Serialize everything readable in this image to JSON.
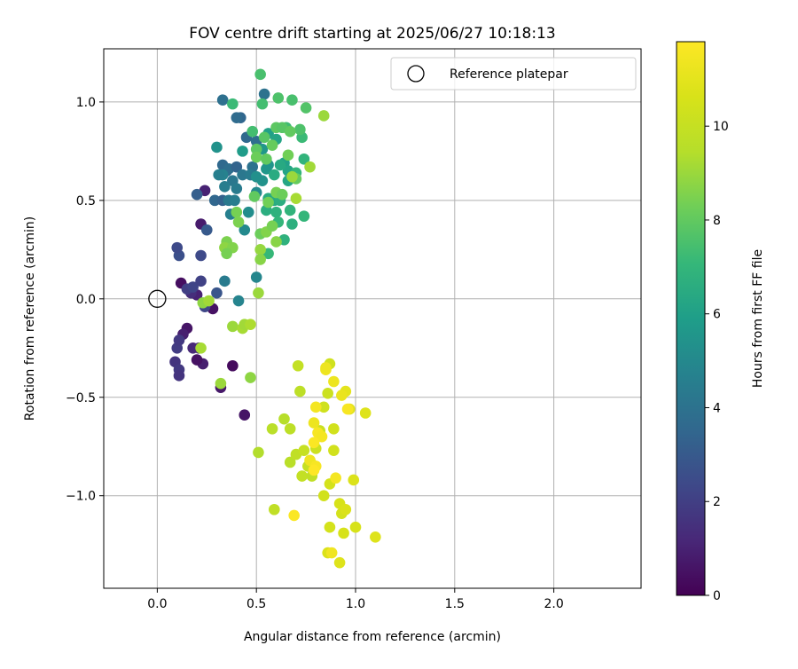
{
  "chart_data": {
    "type": "scatter",
    "title": "FOV centre drift starting at 2025/06/27 10:18:13",
    "xlabel": "Angular distance from reference (arcmin)",
    "ylabel": "Rotation from reference (arcmin)",
    "xlim": [
      -0.27,
      2.44
    ],
    "ylim": [
      -1.47,
      1.27
    ],
    "xticks": [
      0.0,
      0.5,
      1.0,
      1.5,
      2.0
    ],
    "xtick_labels": [
      "0.0",
      "0.5",
      "1.0",
      "1.5",
      "2.0"
    ],
    "yticks": [
      -1.0,
      -0.5,
      0.0,
      0.5,
      1.0
    ],
    "ytick_labels": [
      "−1.0",
      "−0.5",
      "0.0",
      "0.5",
      "1.0"
    ],
    "grid": true,
    "legend": {
      "placement": "top-right",
      "entries": [
        "Reference platepar"
      ]
    },
    "reference_point": {
      "x": 0.0,
      "y": 0.0
    },
    "colorbar": {
      "label": "Hours from first FF file",
      "min": 0,
      "max": 11.8,
      "ticks": [
        0,
        2,
        4,
        6,
        8,
        10
      ],
      "tick_labels": [
        "0",
        "2",
        "4",
        "6",
        "8",
        "10"
      ],
      "colormap": "viridis"
    },
    "points": [
      {
        "x": 0.12,
        "y": 0.08,
        "h": 0.4
      },
      {
        "x": 0.15,
        "y": -0.15,
        "h": 0.6
      },
      {
        "x": 0.13,
        "y": -0.18,
        "h": 0.9
      },
      {
        "x": 0.22,
        "y": 0.38,
        "h": 0.8
      },
      {
        "x": 0.24,
        "y": 0.55,
        "h": 1.0
      },
      {
        "x": 0.28,
        "y": -0.05,
        "h": 0.5
      },
      {
        "x": 0.32,
        "y": -0.45,
        "h": 0.7
      },
      {
        "x": 0.38,
        "y": -0.34,
        "h": 0.3
      },
      {
        "x": 0.44,
        "y": -0.59,
        "h": 0.6
      },
      {
        "x": 0.23,
        "y": -0.33,
        "h": 0.9
      },
      {
        "x": 0.2,
        "y": -0.31,
        "h": 0.5
      },
      {
        "x": 0.21,
        "y": -0.25,
        "h": 1.0
      },
      {
        "x": 0.18,
        "y": -0.25,
        "h": 1.2
      },
      {
        "x": 0.2,
        "y": 0.02,
        "h": 1.0
      },
      {
        "x": 0.17,
        "y": 0.03,
        "h": 1.4
      },
      {
        "x": 0.09,
        "y": -0.32,
        "h": 1.6
      },
      {
        "x": 0.11,
        "y": -0.36,
        "h": 1.8
      },
      {
        "x": 0.11,
        "y": -0.39,
        "h": 1.6
      },
      {
        "x": 0.1,
        "y": -0.25,
        "h": 1.9
      },
      {
        "x": 0.11,
        "y": -0.21,
        "h": 1.8
      },
      {
        "x": 0.15,
        "y": 0.05,
        "h": 2.0
      },
      {
        "x": 0.18,
        "y": 0.06,
        "h": 2.2
      },
      {
        "x": 0.22,
        "y": 0.09,
        "h": 2.1
      },
      {
        "x": 0.24,
        "y": -0.04,
        "h": 2.3
      },
      {
        "x": 0.22,
        "y": 0.22,
        "h": 2.4
      },
      {
        "x": 0.11,
        "y": 0.22,
        "h": 2.6
      },
      {
        "x": 0.1,
        "y": 0.26,
        "h": 2.4
      },
      {
        "x": 0.25,
        "y": 0.35,
        "h": 3.0
      },
      {
        "x": 0.3,
        "y": 0.03,
        "h": 2.8
      },
      {
        "x": 0.2,
        "y": 0.53,
        "h": 3.2
      },
      {
        "x": 0.29,
        "y": 0.5,
        "h": 3.5
      },
      {
        "x": 0.33,
        "y": 0.5,
        "h": 3.3
      },
      {
        "x": 0.35,
        "y": 0.65,
        "h": 3.4
      },
      {
        "x": 0.33,
        "y": 0.68,
        "h": 3.6
      },
      {
        "x": 0.36,
        "y": 0.66,
        "h": 3.8
      },
      {
        "x": 0.4,
        "y": 0.67,
        "h": 3.4
      },
      {
        "x": 0.42,
        "y": 0.92,
        "h": 3.5
      },
      {
        "x": 0.4,
        "y": 0.92,
        "h": 3.7
      },
      {
        "x": 0.33,
        "y": 1.01,
        "h": 3.9
      },
      {
        "x": 0.45,
        "y": 0.82,
        "h": 3.6
      },
      {
        "x": 0.5,
        "y": 0.8,
        "h": 3.8
      },
      {
        "x": 0.54,
        "y": 1.04,
        "h": 4.0
      },
      {
        "x": 0.43,
        "y": 0.63,
        "h": 4.2
      },
      {
        "x": 0.48,
        "y": 0.67,
        "h": 4.0
      },
      {
        "x": 0.47,
        "y": 0.63,
        "h": 4.4
      },
      {
        "x": 0.38,
        "y": 0.6,
        "h": 4.2
      },
      {
        "x": 0.36,
        "y": 0.5,
        "h": 4.3
      },
      {
        "x": 0.39,
        "y": 0.5,
        "h": 4.5
      },
      {
        "x": 0.37,
        "y": 0.43,
        "h": 4.6
      },
      {
        "x": 0.4,
        "y": 0.56,
        "h": 4.4
      },
      {
        "x": 0.34,
        "y": 0.57,
        "h": 4.5
      },
      {
        "x": 0.33,
        "y": 0.63,
        "h": 4.7
      },
      {
        "x": 0.31,
        "y": 0.63,
        "h": 4.6
      },
      {
        "x": 0.34,
        "y": 0.09,
        "h": 4.4
      },
      {
        "x": 0.41,
        "y": -0.01,
        "h": 4.8
      },
      {
        "x": 0.5,
        "y": 0.11,
        "h": 4.9
      },
      {
        "x": 0.44,
        "y": 0.35,
        "h": 5.0
      },
      {
        "x": 0.46,
        "y": 0.44,
        "h": 5.2
      },
      {
        "x": 0.5,
        "y": 0.54,
        "h": 5.0
      },
      {
        "x": 0.53,
        "y": 0.6,
        "h": 5.4
      },
      {
        "x": 0.5,
        "y": 0.62,
        "h": 5.3
      },
      {
        "x": 0.55,
        "y": 0.66,
        "h": 5.6
      },
      {
        "x": 0.56,
        "y": 0.68,
        "h": 5.5
      },
      {
        "x": 0.3,
        "y": 0.77,
        "h": 5.4
      },
      {
        "x": 0.43,
        "y": 0.75,
        "h": 5.8
      },
      {
        "x": 0.53,
        "y": 0.76,
        "h": 5.6
      },
      {
        "x": 0.56,
        "y": 0.84,
        "h": 6.0
      },
      {
        "x": 0.6,
        "y": 0.81,
        "h": 6.2
      },
      {
        "x": 0.64,
        "y": 0.69,
        "h": 6.0
      },
      {
        "x": 0.66,
        "y": 0.65,
        "h": 6.2
      },
      {
        "x": 0.62,
        "y": 0.68,
        "h": 6.4
      },
      {
        "x": 0.59,
        "y": 0.63,
        "h": 6.5
      },
      {
        "x": 0.66,
        "y": 0.6,
        "h": 6.3
      },
      {
        "x": 0.56,
        "y": 0.51,
        "h": 6.5
      },
      {
        "x": 0.55,
        "y": 0.45,
        "h": 6.6
      },
      {
        "x": 0.59,
        "y": 0.5,
        "h": 6.4
      },
      {
        "x": 0.6,
        "y": 0.44,
        "h": 6.8
      },
      {
        "x": 0.62,
        "y": 0.5,
        "h": 6.6
      },
      {
        "x": 0.67,
        "y": 0.45,
        "h": 6.9
      },
      {
        "x": 0.68,
        "y": 0.38,
        "h": 6.7
      },
      {
        "x": 0.61,
        "y": 0.39,
        "h": 7.0
      },
      {
        "x": 0.64,
        "y": 0.3,
        "h": 6.8
      },
      {
        "x": 0.56,
        "y": 0.23,
        "h": 7.1
      },
      {
        "x": 0.74,
        "y": 0.42,
        "h": 7.0
      },
      {
        "x": 0.74,
        "y": 0.71,
        "h": 6.9
      },
      {
        "x": 0.73,
        "y": 0.82,
        "h": 7.2
      },
      {
        "x": 0.7,
        "y": 0.64,
        "h": 7.0
      },
      {
        "x": 0.65,
        "y": 0.87,
        "h": 7.3
      },
      {
        "x": 0.48,
        "y": 0.85,
        "h": 7.4
      },
      {
        "x": 0.38,
        "y": 0.99,
        "h": 7.2
      },
      {
        "x": 0.53,
        "y": 0.99,
        "h": 7.4
      },
      {
        "x": 0.61,
        "y": 1.02,
        "h": 7.6
      },
      {
        "x": 0.68,
        "y": 1.01,
        "h": 7.5
      },
      {
        "x": 0.75,
        "y": 0.97,
        "h": 7.7
      },
      {
        "x": 0.52,
        "y": 1.14,
        "h": 7.5
      },
      {
        "x": 0.54,
        "y": 0.82,
        "h": 7.8
      },
      {
        "x": 0.72,
        "y": 0.86,
        "h": 7.6
      },
      {
        "x": 0.6,
        "y": 0.87,
        "h": 7.9
      },
      {
        "x": 0.63,
        "y": 0.87,
        "h": 7.8
      },
      {
        "x": 0.67,
        "y": 0.85,
        "h": 8.0
      },
      {
        "x": 0.58,
        "y": 0.78,
        "h": 8.1
      },
      {
        "x": 0.5,
        "y": 0.76,
        "h": 7.9
      },
      {
        "x": 0.5,
        "y": 0.72,
        "h": 8.2
      },
      {
        "x": 0.55,
        "y": 0.71,
        "h": 8.0
      },
      {
        "x": 0.66,
        "y": 0.73,
        "h": 8.3
      },
      {
        "x": 0.7,
        "y": 0.61,
        "h": 8.1
      },
      {
        "x": 0.6,
        "y": 0.54,
        "h": 8.4
      },
      {
        "x": 0.63,
        "y": 0.53,
        "h": 8.2
      },
      {
        "x": 0.49,
        "y": 0.52,
        "h": 8.0
      },
      {
        "x": 0.56,
        "y": 0.49,
        "h": 8.3
      },
      {
        "x": 0.4,
        "y": 0.44,
        "h": 8.4
      },
      {
        "x": 0.41,
        "y": 0.39,
        "h": 8.5
      },
      {
        "x": 0.52,
        "y": 0.33,
        "h": 8.2
      },
      {
        "x": 0.55,
        "y": 0.34,
        "h": 8.6
      },
      {
        "x": 0.58,
        "y": 0.37,
        "h": 8.4
      },
      {
        "x": 0.6,
        "y": 0.29,
        "h": 8.7
      },
      {
        "x": 0.35,
        "y": 0.29,
        "h": 8.5
      },
      {
        "x": 0.34,
        "y": 0.26,
        "h": 8.8
      },
      {
        "x": 0.38,
        "y": 0.26,
        "h": 8.6
      },
      {
        "x": 0.35,
        "y": 0.23,
        "h": 8.4
      },
      {
        "x": 0.52,
        "y": 0.25,
        "h": 8.9
      },
      {
        "x": 0.52,
        "y": 0.2,
        "h": 8.7
      },
      {
        "x": 0.51,
        "y": 0.03,
        "h": 9.0
      },
      {
        "x": 0.23,
        "y": -0.02,
        "h": 8.8
      },
      {
        "x": 0.26,
        "y": -0.01,
        "h": 9.1
      },
      {
        "x": 0.38,
        "y": -0.14,
        "h": 9.0
      },
      {
        "x": 0.43,
        "y": -0.15,
        "h": 9.2
      },
      {
        "x": 0.44,
        "y": -0.13,
        "h": 9.1
      },
      {
        "x": 0.47,
        "y": -0.13,
        "h": 9.3
      },
      {
        "x": 0.22,
        "y": -0.25,
        "h": 9.2
      },
      {
        "x": 0.32,
        "y": -0.43,
        "h": 9.0
      },
      {
        "x": 0.47,
        "y": -0.4,
        "h": 8.8
      },
      {
        "x": 0.68,
        "y": 0.62,
        "h": 9.0
      },
      {
        "x": 0.7,
        "y": 0.51,
        "h": 9.2
      },
      {
        "x": 0.77,
        "y": 0.67,
        "h": 9.1
      },
      {
        "x": 0.84,
        "y": 0.93,
        "h": 9.0
      },
      {
        "x": 0.51,
        "y": -0.78,
        "h": 9.4
      },
      {
        "x": 0.58,
        "y": -0.66,
        "h": 9.6
      },
      {
        "x": 0.64,
        "y": -0.61,
        "h": 9.5
      },
      {
        "x": 0.67,
        "y": -0.66,
        "h": 9.7
      },
      {
        "x": 0.67,
        "y": -0.83,
        "h": 9.6
      },
      {
        "x": 0.7,
        "y": -0.79,
        "h": 9.8
      },
      {
        "x": 0.72,
        "y": -0.47,
        "h": 9.7
      },
      {
        "x": 0.71,
        "y": -0.34,
        "h": 9.9
      },
      {
        "x": 0.59,
        "y": -1.07,
        "h": 9.8
      },
      {
        "x": 0.73,
        "y": -0.9,
        "h": 9.9
      },
      {
        "x": 0.76,
        "y": -0.85,
        "h": 10.0
      },
      {
        "x": 0.78,
        "y": -0.9,
        "h": 9.8
      },
      {
        "x": 0.78,
        "y": -0.84,
        "h": 10.1
      },
      {
        "x": 0.74,
        "y": -0.77,
        "h": 10.0
      },
      {
        "x": 0.8,
        "y": -0.76,
        "h": 10.2
      },
      {
        "x": 0.82,
        "y": -0.67,
        "h": 10.1
      },
      {
        "x": 0.84,
        "y": -0.55,
        "h": 10.3
      },
      {
        "x": 0.86,
        "y": -0.48,
        "h": 10.2
      },
      {
        "x": 0.89,
        "y": -0.66,
        "h": 10.4
      },
      {
        "x": 0.87,
        "y": -0.33,
        "h": 10.3
      },
      {
        "x": 0.84,
        "y": -1.0,
        "h": 10.4
      },
      {
        "x": 0.87,
        "y": -0.94,
        "h": 10.5
      },
      {
        "x": 0.89,
        "y": -0.77,
        "h": 10.4
      },
      {
        "x": 0.92,
        "y": -1.04,
        "h": 10.6
      },
      {
        "x": 0.93,
        "y": -1.09,
        "h": 10.5
      },
      {
        "x": 0.95,
        "y": -1.07,
        "h": 10.7
      },
      {
        "x": 0.94,
        "y": -1.19,
        "h": 10.6
      },
      {
        "x": 0.87,
        "y": -1.16,
        "h": 10.5
      },
      {
        "x": 0.86,
        "y": -1.29,
        "h": 10.7
      },
      {
        "x": 0.92,
        "y": -1.34,
        "h": 10.8
      },
      {
        "x": 1.0,
        "y": -1.16,
        "h": 10.6
      },
      {
        "x": 1.1,
        "y": -1.21,
        "h": 10.8
      },
      {
        "x": 0.99,
        "y": -0.92,
        "h": 10.7
      },
      {
        "x": 0.97,
        "y": -0.56,
        "h": 10.9
      },
      {
        "x": 1.05,
        "y": -0.58,
        "h": 10.8
      },
      {
        "x": 0.95,
        "y": -0.47,
        "h": 11.0
      },
      {
        "x": 0.93,
        "y": -0.49,
        "h": 11.2
      },
      {
        "x": 0.89,
        "y": -0.42,
        "h": 11.3
      },
      {
        "x": 0.85,
        "y": -0.36,
        "h": 11.4
      },
      {
        "x": 0.8,
        "y": -0.55,
        "h": 11.5
      },
      {
        "x": 0.79,
        "y": -0.63,
        "h": 11.3
      },
      {
        "x": 0.81,
        "y": -0.68,
        "h": 11.6
      },
      {
        "x": 0.83,
        "y": -0.7,
        "h": 11.5
      },
      {
        "x": 0.79,
        "y": -0.73,
        "h": 11.7
      },
      {
        "x": 0.77,
        "y": -0.82,
        "h": 11.4
      },
      {
        "x": 0.8,
        "y": -0.85,
        "h": 11.6
      },
      {
        "x": 0.79,
        "y": -0.87,
        "h": 11.8
      },
      {
        "x": 0.9,
        "y": -0.91,
        "h": 11.5
      },
      {
        "x": 0.69,
        "y": -1.1,
        "h": 11.7
      },
      {
        "x": 0.88,
        "y": -1.29,
        "h": 11.4
      },
      {
        "x": 0.96,
        "y": -0.56,
        "h": 11.6
      },
      {
        "x": 0.85,
        "y": -0.35,
        "h": 11.3
      }
    ]
  }
}
